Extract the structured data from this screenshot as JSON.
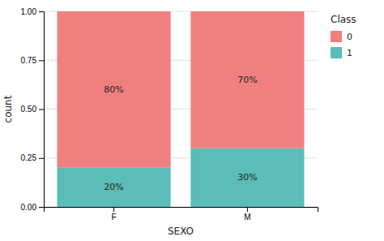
{
  "chart_data": {
    "type": "bar",
    "stacked": true,
    "categories": [
      "F",
      "M"
    ],
    "series": [
      {
        "name": "0",
        "color": "#f08080",
        "values": [
          0.8,
          0.7
        ],
        "value_labels": [
          "80%",
          "70%"
        ]
      },
      {
        "name": "1",
        "color": "#5bbcb8",
        "values": [
          0.2,
          0.3
        ],
        "value_labels": [
          "20%",
          "30%"
        ]
      }
    ],
    "xlabel": "SEXO",
    "ylabel": "count",
    "ylim": [
      0.0,
      1.0
    ],
    "yticks": [
      {
        "value": 0.0,
        "label": "0.00"
      },
      {
        "value": 0.25,
        "label": "0.25"
      },
      {
        "value": 0.5,
        "label": "0.50"
      },
      {
        "value": 0.75,
        "label": "0.75"
      },
      {
        "value": 1.0,
        "label": "1.00"
      }
    ],
    "grid": true,
    "data_labels": true,
    "legend": "right",
    "legend_title": "Class"
  }
}
